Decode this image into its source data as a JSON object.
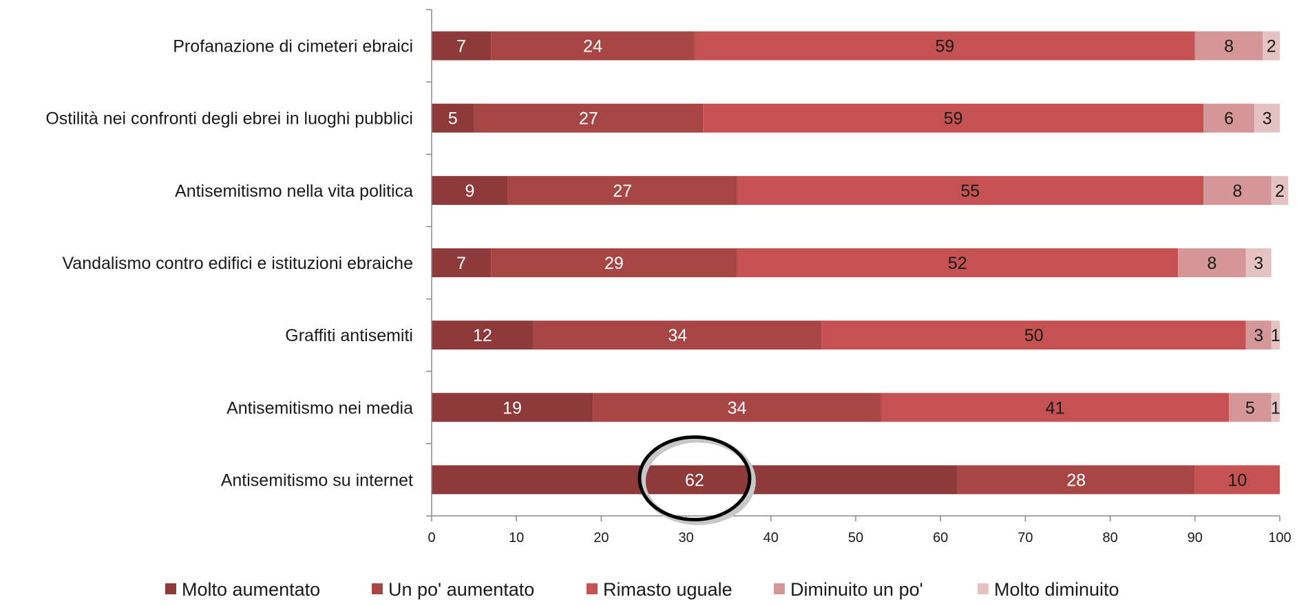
{
  "chart_data": {
    "type": "bar",
    "orientation": "horizontal",
    "stacked": true,
    "categories": [
      "Profanazione di cimeteri ebraici",
      "Ostilità nei confronti degli ebrei in luoghi pubblici",
      "Antisemitismo nella vita politica",
      "Vandalismo contro edifici e istituzioni ebraiche",
      "Graffiti antisemiti",
      "Antisemitismo nei media",
      "Antisemitismo su internet"
    ],
    "series": [
      {
        "name": "Molto aumentato",
        "color": "#8e3a3a",
        "label_color": "#ffffff",
        "values": [
          7,
          5,
          9,
          7,
          12,
          19,
          62
        ]
      },
      {
        "name": "Un po' aumentato",
        "color": "#a84646",
        "label_color": "#ffffff",
        "values": [
          24,
          27,
          27,
          29,
          34,
          34,
          28
        ]
      },
      {
        "name": "Rimasto uguale",
        "color": "#c45252",
        "label_color": "#1a1a1a",
        "values": [
          59,
          59,
          55,
          52,
          50,
          41,
          10
        ]
      },
      {
        "name": "Diminuito un po'",
        "color": "#d49696",
        "label_color": "#1a1a1a",
        "values": [
          8,
          6,
          8,
          8,
          3,
          5,
          null
        ]
      },
      {
        "name": "Molto diminuito",
        "color": "#e6c3c3",
        "label_color": "#1a1a1a",
        "values": [
          2,
          3,
          2,
          3,
          1,
          1,
          null
        ]
      }
    ],
    "xlim": [
      0,
      100
    ],
    "xticks": [
      0,
      10,
      20,
      30,
      40,
      50,
      60,
      70,
      80,
      90,
      100
    ],
    "title": "",
    "xlabel": "",
    "ylabel": "",
    "grid": false,
    "legend_position": "bottom",
    "annotation": {
      "type": "ellipse",
      "category": "Antisemitismo su internet",
      "value": 62
    }
  }
}
